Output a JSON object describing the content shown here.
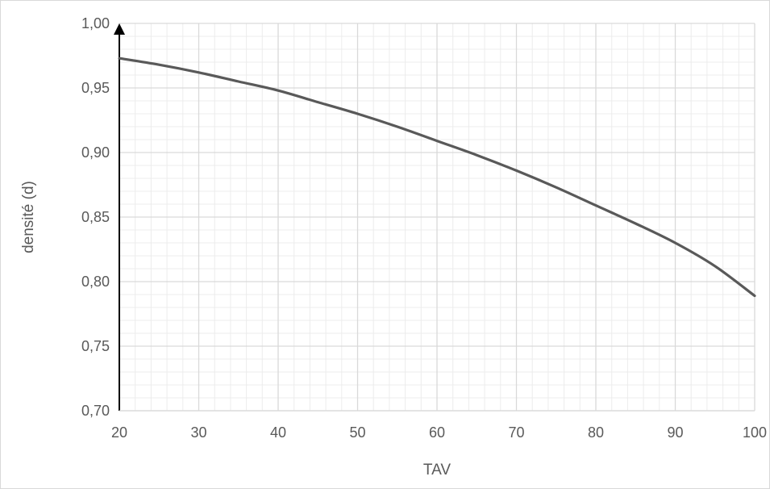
{
  "chart_data": {
    "type": "line",
    "xlabel": "TAV",
    "ylabel": "densité (d)",
    "xlim": [
      20,
      100
    ],
    "ylim": [
      0.7,
      1.0
    ],
    "x_ticks": [
      "20",
      "30",
      "40",
      "50",
      "60",
      "70",
      "80",
      "90",
      "100"
    ],
    "y_ticks": [
      "0,70",
      "0,75",
      "0,80",
      "0,85",
      "0,90",
      "0,95",
      "1,00"
    ],
    "grid": "major and minor",
    "series": [
      {
        "x": [
          20,
          25,
          30,
          35,
          40,
          45,
          50,
          55,
          60,
          65,
          70,
          75,
          80,
          85,
          90,
          95,
          100
        ],
        "y": [
          0.973,
          0.968,
          0.962,
          0.955,
          0.948,
          0.939,
          0.93,
          0.92,
          0.909,
          0.898,
          0.886,
          0.873,
          0.859,
          0.845,
          0.83,
          0.812,
          0.789
        ]
      }
    ],
    "colors": {
      "line": "#595959",
      "grid_major": "#d9d9d9",
      "grid_minor": "#ececec",
      "axis": "#000000"
    }
  }
}
